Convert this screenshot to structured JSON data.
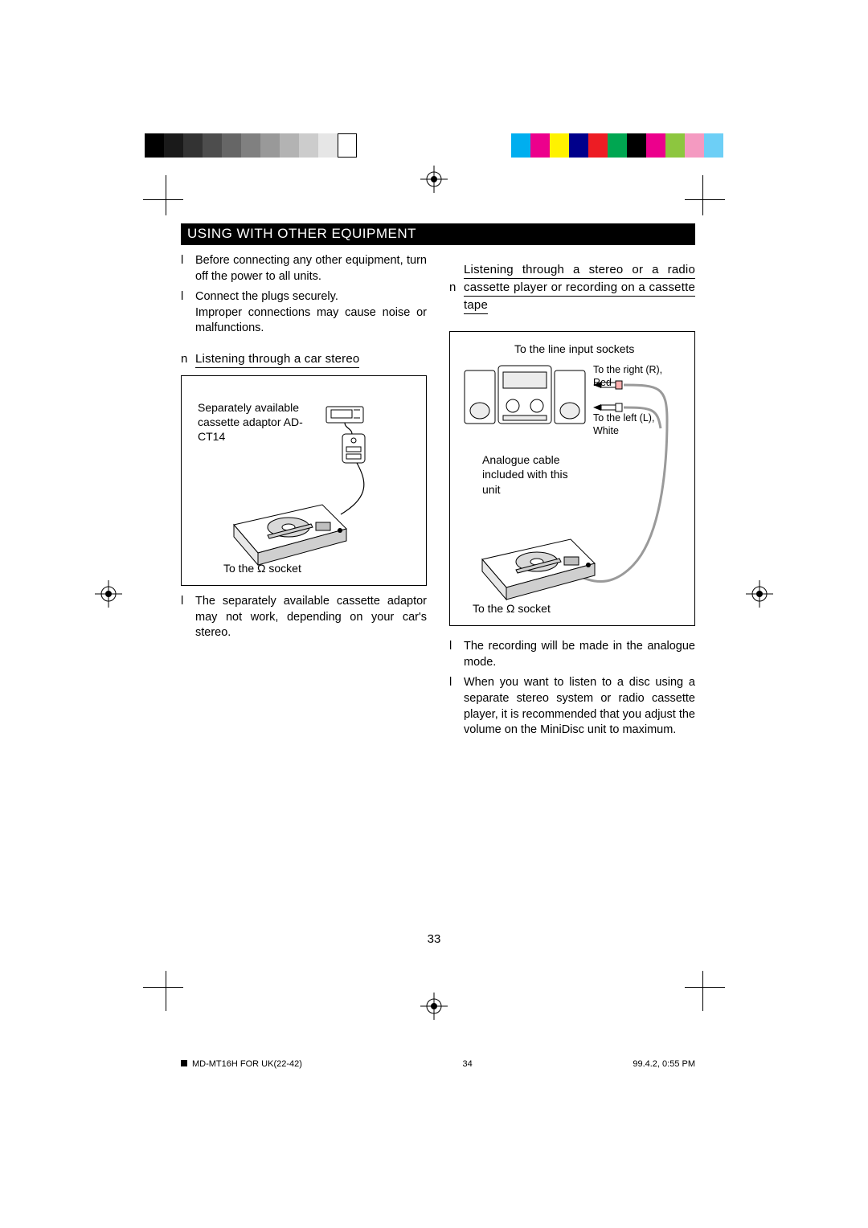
{
  "colorbar": {
    "left": [
      "#000000",
      "#1a1a1a",
      "#333333",
      "#4d4d4d",
      "#666666",
      "#808080",
      "#999999",
      "#b3b3b3",
      "#cccccc",
      "#e6e6e6",
      "#ffffff"
    ],
    "right": [
      "#00aeef",
      "#ec008c",
      "#fff200",
      "#00008b",
      "#ed1c24",
      "#00a651",
      "#000000",
      "#ec008c",
      "#8dc63f",
      "#f49ac1",
      "#6dcff6"
    ]
  },
  "section_title": "USING WITH OTHER EQUIPMENT",
  "intro_bullets": [
    "Before connecting any other equipment, turn off the power to all units.",
    "Connect the plugs securely.\nImproper connections may cause noise or malfunctions."
  ],
  "left": {
    "subhead": "Listening through a car stereo",
    "fig": {
      "adaptor_label": "Separately available cassette adaptor AD-CT14",
      "socket_label": "To the Ω socket"
    },
    "notes": [
      "The separately available cassette adaptor may not work, depending on your car's stereo."
    ]
  },
  "right": {
    "subhead": "Listening through a stereo or a radio cassette player or recording on a cassette tape",
    "fig": {
      "line_in_label": "To the line input sockets",
      "right_label": "To the right (R), Red",
      "left_label": "To the left (L), White",
      "cable_label": "Analogue cable included with this unit",
      "socket_label": "To the Ω socket"
    },
    "notes": [
      "The recording will be made in the analogue mode.",
      "When you want to listen to a disc using a separate stereo system or radio cassette player, it is recommended that you adjust the volume on the MiniDisc unit to maximum."
    ]
  },
  "page_number": "33",
  "footer": {
    "doc": "MD-MT16H FOR UK(22-42)",
    "sheet": "34",
    "timestamp": "99.4.2, 0:55 PM"
  },
  "colors": {
    "text": "#000000",
    "title_bg": "#000000",
    "title_fg": "#ffffff",
    "page_bg": "#ffffff",
    "figure_stroke": "#000000",
    "cable_gray": "#9a9a9a"
  }
}
